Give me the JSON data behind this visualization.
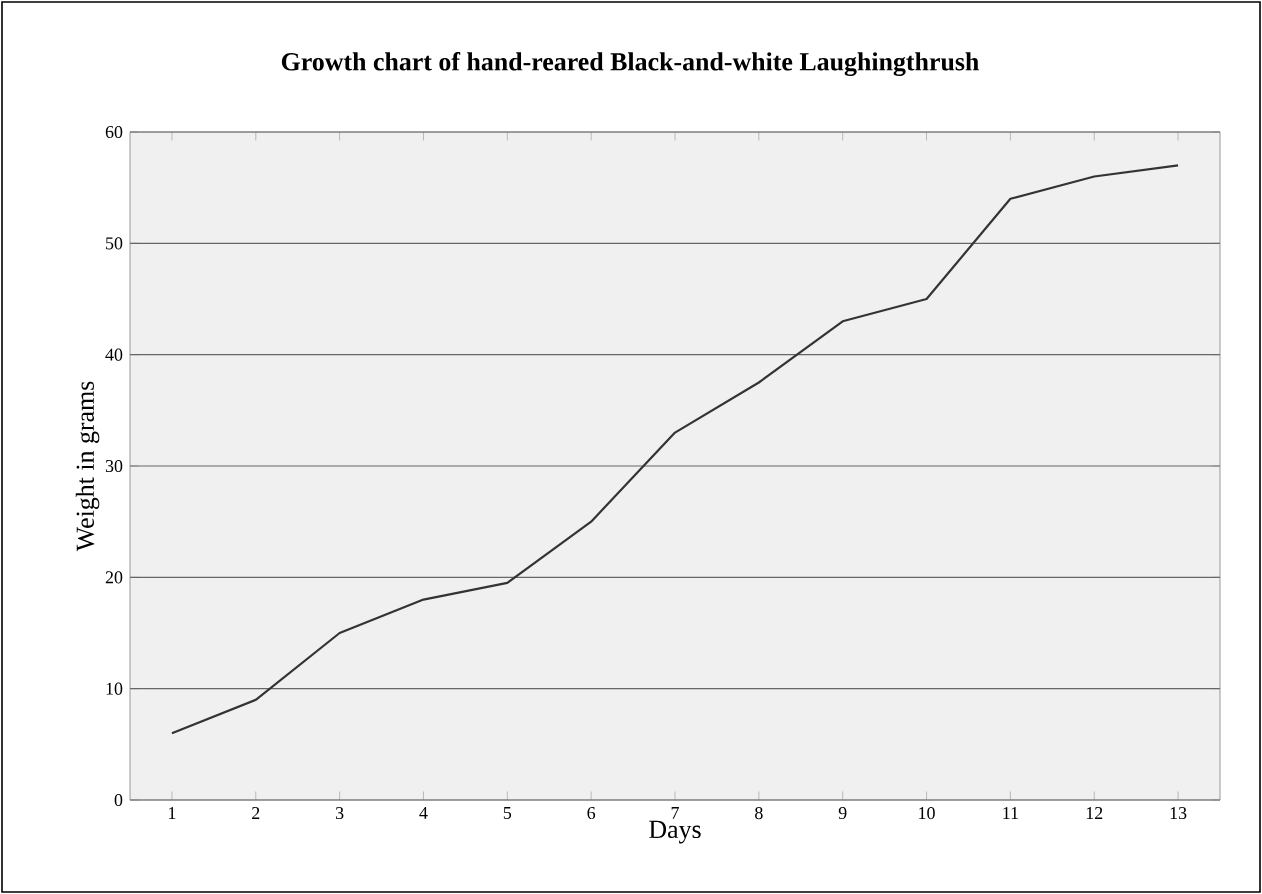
{
  "chart_data": {
    "type": "line",
    "title": "Growth chart of hand-reared Black-and-white Laughingthrush",
    "xlabel": "Days",
    "ylabel": "Weight in grams",
    "categories": [
      "1",
      "2",
      "3",
      "4",
      "5",
      "6",
      "7",
      "8",
      "9",
      "10",
      "11",
      "12",
      "13"
    ],
    "values": [
      6,
      9,
      15,
      18,
      19.5,
      25,
      33,
      37.5,
      43,
      45,
      54,
      56,
      57
    ],
    "color": "#333333",
    "ylim": [
      0,
      60
    ],
    "yticks": [
      0,
      10,
      20,
      30,
      40,
      50,
      60
    ],
    "grid": "y",
    "marker": "none",
    "line_style": "solid"
  }
}
